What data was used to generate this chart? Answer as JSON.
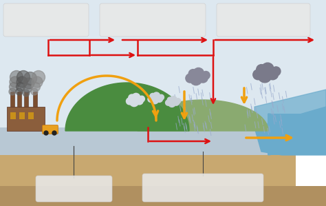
{
  "bg_color": "#ffffff",
  "sky_color": "#dde8f0",
  "ground_color": "#b8c8d4",
  "soil_color": "#c8a870",
  "water_color": "#6aabcc",
  "mountain1_color": "#4a8c3f",
  "mountain2_color": "#8aaa70",
  "red": "#dd1111",
  "yellow": "#f0a010",
  "rain_color": "#99aacc",
  "smoke_dark": "#555555",
  "factory_brown": "#8b5e3c",
  "chimney_color": "#7a4e30",
  "car_color": "#e8a020",
  "cloud_light": "#d8d8d8",
  "cloud_dark": "#888899",
  "label_bg": "#e8e8e8",
  "label_edge": "#cccccc",
  "callout_color": "#444444"
}
